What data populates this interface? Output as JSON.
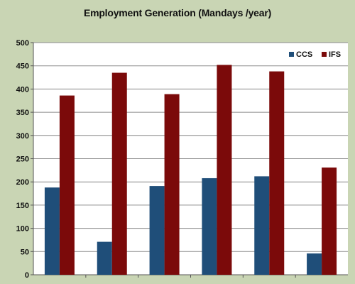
{
  "chart_data": {
    "type": "bar",
    "title": "Employment Generation (Mandays /year)",
    "categories": [
      "",
      "",
      "",
      "",
      "",
      ""
    ],
    "series": [
      {
        "name": "CCS",
        "color": "#1f4e79",
        "values": [
          188,
          71,
          191,
          208,
          212,
          46
        ]
      },
      {
        "name": "IFS",
        "color": "#7b0a0a",
        "values": [
          386,
          435,
          389,
          452,
          438,
          231
        ]
      }
    ],
    "ylim": [
      0,
      500
    ],
    "yticks": [
      0,
      50,
      100,
      150,
      200,
      250,
      300,
      350,
      400,
      450,
      500
    ],
    "grid": true,
    "legend": "top-right"
  }
}
